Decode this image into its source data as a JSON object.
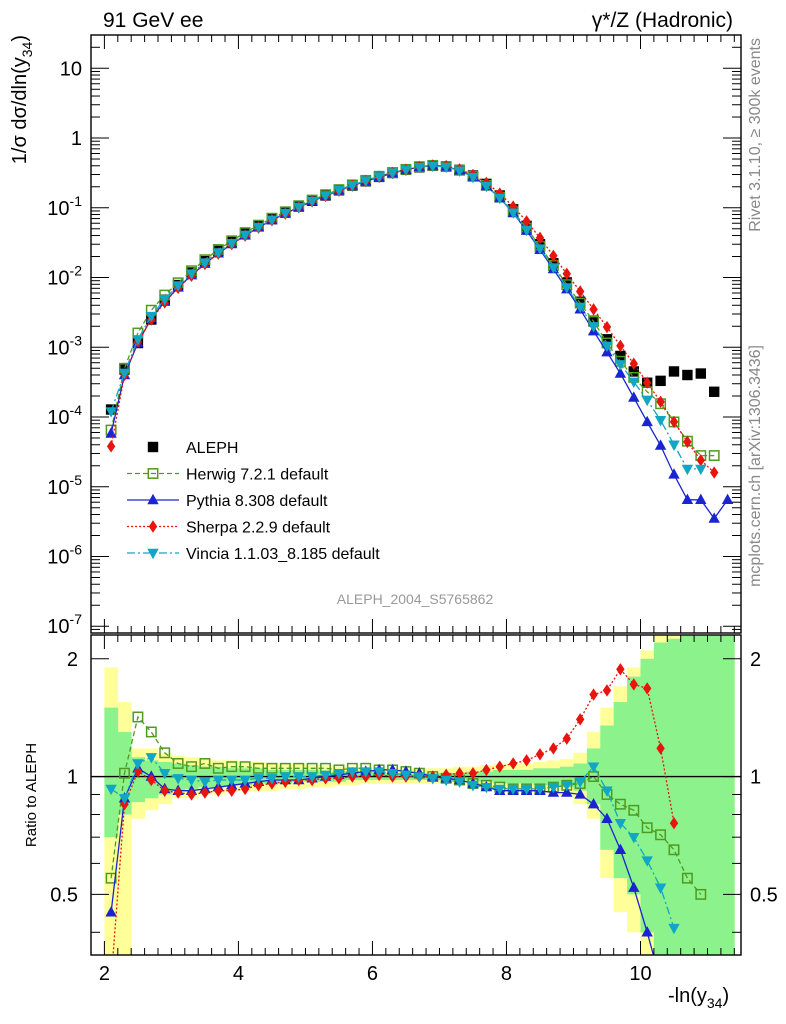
{
  "header": {
    "left": "91 GeV ee",
    "right": "γ*/Z (Hadronic)"
  },
  "side_texts": {
    "rivet": "Rivet 3.1.10, ≥ 300k events",
    "mcplots": "mcplots.cern.ch [arXiv:1306.3436]"
  },
  "watermark": "ALEPH_2004_S5765862",
  "axes": {
    "ylabel_top": "1/σ dσ/dln(y34)",
    "ylabel_bottom": "Ratio to ALEPH",
    "xlabel": "-ln(y34)"
  },
  "chart_data": {
    "type": "scatter",
    "x": [
      2.1,
      2.3,
      2.5,
      2.7,
      2.9,
      3.1,
      3.3,
      3.5,
      3.7,
      3.9,
      4.1,
      4.3,
      4.5,
      4.7,
      4.9,
      5.1,
      5.3,
      5.5,
      5.7,
      5.9,
      6.1,
      6.3,
      6.5,
      6.7,
      6.9,
      7.1,
      7.3,
      7.5,
      7.7,
      7.9,
      8.1,
      8.3,
      8.5,
      8.7,
      8.9,
      9.1,
      9.3,
      9.5,
      9.7,
      9.9,
      10.1,
      10.3,
      10.5,
      10.7,
      10.9,
      11.1,
      11.3
    ],
    "xlim": [
      1.8,
      11.5
    ],
    "main_panel": {
      "ylim": [
        8e-08,
        30
      ],
      "yscale": "log",
      "y_tick_labels": [
        "10^-7",
        "10^-6",
        "10^-5",
        "10^-4",
        "10^-3",
        "10^-2",
        "10^-1",
        "1",
        "10"
      ],
      "series": [
        {
          "name": "ALEPH",
          "values": [
            0.000128,
            0.00048,
            0.00115,
            0.0025,
            0.0048,
            0.0078,
            0.0118,
            0.0172,
            0.0241,
            0.0325,
            0.0426,
            0.0546,
            0.0688,
            0.0852,
            0.104,
            0.126,
            0.15,
            0.178,
            0.208,
            0.24,
            0.277,
            0.315,
            0.35,
            0.38,
            0.4,
            0.39,
            0.35,
            0.29,
            0.22,
            0.15,
            0.095,
            0.055,
            0.03,
            0.016,
            0.0085,
            0.0045,
            0.0024,
            0.0013,
            0.00075,
            0.00045,
            0.00031,
            0.00033,
            0.00045,
            0.0004,
            0.00042,
            0.00023,
            null
          ]
        },
        {
          "name": "Herwig 7.2.1 default",
          "values": [
            6.5e-05,
            0.0005,
            0.0016,
            0.0034,
            0.0056,
            0.0084,
            0.0125,
            0.018,
            0.0252,
            0.0336,
            0.044,
            0.0563,
            0.0708,
            0.0876,
            0.107,
            0.129,
            0.154,
            0.182,
            0.213,
            0.247,
            0.283,
            0.32,
            0.355,
            0.388,
            0.405,
            0.39,
            0.345,
            0.282,
            0.21,
            0.142,
            0.088,
            0.051,
            0.028,
            0.0149,
            0.0079,
            0.0043,
            0.00235,
            0.00115,
            0.00063,
            0.00037,
            0.00023,
            0.000155,
            8.5e-05,
            4.5e-05,
            2.8e-05,
            2.8e-05,
            null
          ]
        },
        {
          "name": "Pythia 8.308 default",
          "values": [
            5.8e-05,
            0.0004,
            0.00115,
            0.0026,
            0.0045,
            0.0072,
            0.0108,
            0.0158,
            0.0222,
            0.0302,
            0.0402,
            0.0523,
            0.0665,
            0.083,
            0.102,
            0.124,
            0.148,
            0.176,
            0.207,
            0.24,
            0.275,
            0.313,
            0.35,
            0.384,
            0.402,
            0.39,
            0.345,
            0.28,
            0.205,
            0.138,
            0.084,
            0.047,
            0.025,
            0.0132,
            0.0068,
            0.0035,
            0.0017,
            0.00085,
            0.00042,
            0.00019,
            8.5e-05,
            3.9e-05,
            1.5e-05,
            6.5e-06,
            6.5e-06,
            3.5e-06,
            6.5e-06
          ]
        },
        {
          "name": "Sherpa 2.2.9 default",
          "values": [
            3.8e-05,
            0.0004,
            0.0012,
            0.0025,
            0.0044,
            0.0071,
            0.0106,
            0.0156,
            0.022,
            0.03,
            0.0398,
            0.0519,
            0.066,
            0.0823,
            0.1015,
            0.1235,
            0.148,
            0.176,
            0.207,
            0.241,
            0.277,
            0.315,
            0.35,
            0.384,
            0.405,
            0.396,
            0.356,
            0.296,
            0.228,
            0.16,
            0.104,
            0.064,
            0.037,
            0.0205,
            0.0113,
            0.0063,
            0.0035,
            0.00195,
            0.00105,
            0.00058,
            0.00031,
            0.000165,
            8.5e-05,
            4.4e-05,
            2.4e-05,
            1.6e-05,
            null
          ]
        },
        {
          "name": "Vincia 1.1.03_8.185 default",
          "values": [
            0.00012,
            0.00043,
            0.0013,
            0.0028,
            0.0049,
            0.0077,
            0.0114,
            0.0164,
            0.0229,
            0.031,
            0.041,
            0.0531,
            0.0675,
            0.0843,
            0.103,
            0.126,
            0.151,
            0.18,
            0.211,
            0.245,
            0.281,
            0.318,
            0.352,
            0.382,
            0.398,
            0.385,
            0.34,
            0.276,
            0.205,
            0.138,
            0.085,
            0.048,
            0.026,
            0.0139,
            0.0072,
            0.0038,
            0.002,
            0.00105,
            0.00057,
            0.00032,
            0.000175,
            9e-05,
            4e-05,
            1.8e-05,
            1.8e-05,
            null,
            null
          ]
        }
      ]
    },
    "ratio_panel": {
      "ylim": [
        0.35,
        2.3
      ],
      "yscale": "log",
      "y_tick_labels": [
        "0.5",
        "1",
        "2"
      ],
      "reference": 1,
      "uncertainty_band_outer": [
        [
          0.3,
          1.9
        ],
        [
          0.3,
          1.55
        ],
        [
          0.78,
          1.18
        ],
        [
          0.82,
          1.18
        ],
        [
          0.85,
          1.15
        ],
        [
          0.88,
          1.13
        ],
        [
          0.88,
          1.12
        ],
        [
          0.9,
          1.11
        ],
        [
          0.9,
          1.1
        ],
        [
          0.92,
          1.1
        ],
        [
          0.92,
          1.09
        ],
        [
          0.92,
          1.09
        ],
        [
          0.92,
          1.08
        ],
        [
          0.93,
          1.08
        ],
        [
          0.93,
          1.08
        ],
        [
          0.94,
          1.07
        ],
        [
          0.94,
          1.07
        ],
        [
          0.95,
          1.06
        ],
        [
          0.95,
          1.06
        ],
        [
          0.96,
          1.05
        ],
        [
          0.96,
          1.05
        ],
        [
          0.96,
          1.05
        ],
        [
          0.96,
          1.05
        ],
        [
          0.96,
          1.05
        ],
        [
          0.96,
          1.05
        ],
        [
          0.96,
          1.05
        ],
        [
          0.95,
          1.06
        ],
        [
          0.95,
          1.06
        ],
        [
          0.94,
          1.07
        ],
        [
          0.93,
          1.08
        ],
        [
          0.92,
          1.08
        ],
        [
          0.92,
          1.08
        ],
        [
          0.91,
          1.09
        ],
        [
          0.9,
          1.1
        ],
        [
          0.89,
          1.11
        ],
        [
          0.85,
          1.15
        ],
        [
          0.78,
          1.3
        ],
        [
          0.55,
          1.5
        ],
        [
          0.45,
          1.7
        ],
        [
          0.4,
          1.9
        ],
        [
          0.35,
          2.1
        ],
        [
          0.35,
          2.3
        ],
        [
          0.35,
          2.3
        ],
        [
          0.35,
          2.3
        ],
        [
          0.35,
          2.3
        ],
        [
          0.35,
          2.3
        ],
        [
          0.35,
          2.3
        ]
      ],
      "uncertainty_band_inner": [
        [
          0.7,
          1.5
        ],
        [
          0.8,
          1.3
        ],
        [
          0.86,
          1.12
        ],
        [
          0.88,
          1.1
        ],
        [
          0.9,
          1.09
        ],
        [
          0.92,
          1.08
        ],
        [
          0.93,
          1.07
        ],
        [
          0.94,
          1.06
        ],
        [
          0.94,
          1.06
        ],
        [
          0.95,
          1.05
        ],
        [
          0.95,
          1.05
        ],
        [
          0.96,
          1.05
        ],
        [
          0.96,
          1.04
        ],
        [
          0.96,
          1.04
        ],
        [
          0.97,
          1.04
        ],
        [
          0.97,
          1.04
        ],
        [
          0.97,
          1.03
        ],
        [
          0.97,
          1.03
        ],
        [
          0.98,
          1.03
        ],
        [
          0.98,
          1.03
        ],
        [
          0.98,
          1.02
        ],
        [
          0.98,
          1.02
        ],
        [
          0.98,
          1.02
        ],
        [
          0.98,
          1.02
        ],
        [
          0.98,
          1.02
        ],
        [
          0.98,
          1.02
        ],
        [
          0.98,
          1.02
        ],
        [
          0.97,
          1.03
        ],
        [
          0.97,
          1.03
        ],
        [
          0.96,
          1.04
        ],
        [
          0.96,
          1.04
        ],
        [
          0.96,
          1.04
        ],
        [
          0.95,
          1.05
        ],
        [
          0.95,
          1.05
        ],
        [
          0.94,
          1.06
        ],
        [
          0.92,
          1.08
        ],
        [
          0.85,
          1.18
        ],
        [
          0.65,
          1.35
        ],
        [
          0.55,
          1.55
        ],
        [
          0.5,
          1.8
        ],
        [
          0.4,
          2.0
        ],
        [
          0.35,
          2.2
        ],
        [
          0.35,
          2.25
        ],
        [
          0.35,
          2.3
        ],
        [
          0.35,
          2.3
        ],
        [
          0.35,
          2.3
        ],
        [
          0.35,
          2.3
        ]
      ],
      "series": [
        {
          "name": "Herwig 7.2.1 default",
          "values": [
            0.55,
            1.02,
            1.42,
            1.3,
            1.15,
            1.08,
            1.06,
            1.08,
            1.05,
            1.06,
            1.06,
            1.05,
            1.05,
            1.05,
            1.05,
            1.05,
            1.05,
            1.04,
            1.05,
            1.05,
            1.04,
            1.04,
            1.03,
            1.02,
            1.0,
            0.99,
            0.98,
            0.96,
            0.95,
            0.94,
            0.93,
            0.93,
            0.93,
            0.94,
            0.95,
            0.96,
            1.0,
            0.9,
            0.85,
            0.82,
            0.74,
            0.71,
            0.65,
            0.55,
            0.5,
            null,
            null
          ]
        },
        {
          "name": "Pythia 8.308 default",
          "values": [
            0.45,
            0.88,
            1.05,
            1.0,
            0.93,
            0.92,
            0.92,
            0.93,
            0.94,
            0.95,
            0.96,
            0.97,
            0.98,
            0.98,
            0.98,
            0.99,
            1.0,
            1.01,
            1.02,
            1.03,
            1.04,
            1.04,
            1.03,
            1.02,
            1.0,
            0.99,
            0.98,
            0.96,
            0.94,
            0.92,
            0.92,
            0.92,
            0.92,
            0.91,
            0.91,
            0.9,
            0.85,
            0.78,
            0.65,
            0.52,
            0.4,
            0.3,
            null,
            null,
            null,
            null,
            null
          ]
        },
        {
          "name": "Sherpa 2.2.9 default",
          "values": [
            0.3,
            0.85,
            1.03,
            0.98,
            0.92,
            0.91,
            0.9,
            0.91,
            0.92,
            0.92,
            0.93,
            0.95,
            0.96,
            0.97,
            0.98,
            0.98,
            0.99,
            0.99,
            1.0,
            1.0,
            1.01,
            1.0,
            1.0,
            1.0,
            1.0,
            1.01,
            1.02,
            1.02,
            1.04,
            1.06,
            1.08,
            1.1,
            1.14,
            1.18,
            1.25,
            1.4,
            1.62,
            1.66,
            1.88,
            1.72,
            1.68,
            1.18,
            0.76,
            null,
            null,
            null,
            null
          ]
        },
        {
          "name": "Vincia 1.1.03_8.185 default",
          "values": [
            0.93,
            0.88,
            1.08,
            1.12,
            1.02,
            0.99,
            0.98,
            0.97,
            0.98,
            0.98,
            0.98,
            0.99,
            0.99,
            1.0,
            1.0,
            1.0,
            1.01,
            1.02,
            1.03,
            1.03,
            1.03,
            1.02,
            1.01,
            1.0,
            0.99,
            0.98,
            0.97,
            0.95,
            0.94,
            0.93,
            0.93,
            0.93,
            0.93,
            0.94,
            0.95,
            0.97,
            1.06,
            0.92,
            0.76,
            0.7,
            0.61,
            0.52,
            0.41,
            null,
            null,
            null,
            null
          ]
        }
      ]
    },
    "x_tick_labels": [
      "2",
      "4",
      "6",
      "8",
      "10"
    ],
    "legend_placement": "center-left",
    "colors": {
      "ALEPH": "#000000",
      "Herwig 7.2.1 default": "#4f9a20",
      "Pythia 8.308 default": "#1a24d0",
      "Sherpa 2.2.9 default": "#e8140e",
      "Vincia 1.1.03_8.185 default": "#10a6c4",
      "band_outer": "#ffff9a",
      "band_inner": "#8cf28c"
    }
  }
}
